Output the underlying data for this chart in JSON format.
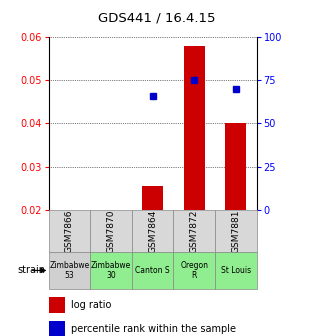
{
  "title": "GDS441 / 16.4.15",
  "samples": [
    "GSM7866",
    "GSM7870",
    "GSM7864",
    "GSM7872",
    "GSM7881"
  ],
  "strains": [
    "Zimbabwe\n53",
    "Zimbabwe\n30",
    "Canton S",
    "Oregon\nR",
    "St Louis"
  ],
  "strain_colors": [
    "#d0d0d0",
    "#90ee90",
    "#90ee90",
    "#90ee90",
    "#90ee90"
  ],
  "log_ratios": [
    null,
    null,
    0.0255,
    0.0578,
    0.04
  ],
  "percentile_ranks": [
    null,
    null,
    66,
    75,
    70
  ],
  "ylim_left": [
    0.02,
    0.06
  ],
  "ylim_right": [
    0,
    100
  ],
  "yticks_left": [
    0.02,
    0.03,
    0.04,
    0.05,
    0.06
  ],
  "yticks_right": [
    0,
    25,
    50,
    75,
    100
  ],
  "bar_color": "#cc0000",
  "dot_color": "#0000cc",
  "bar_bottom": 0.02,
  "background_color": "#ffffff",
  "legend_bar_label": "log ratio",
  "legend_dot_label": "percentile rank within the sample",
  "strain_label": "strain",
  "fig_width": 3.13,
  "fig_height": 3.36,
  "dpi": 100
}
